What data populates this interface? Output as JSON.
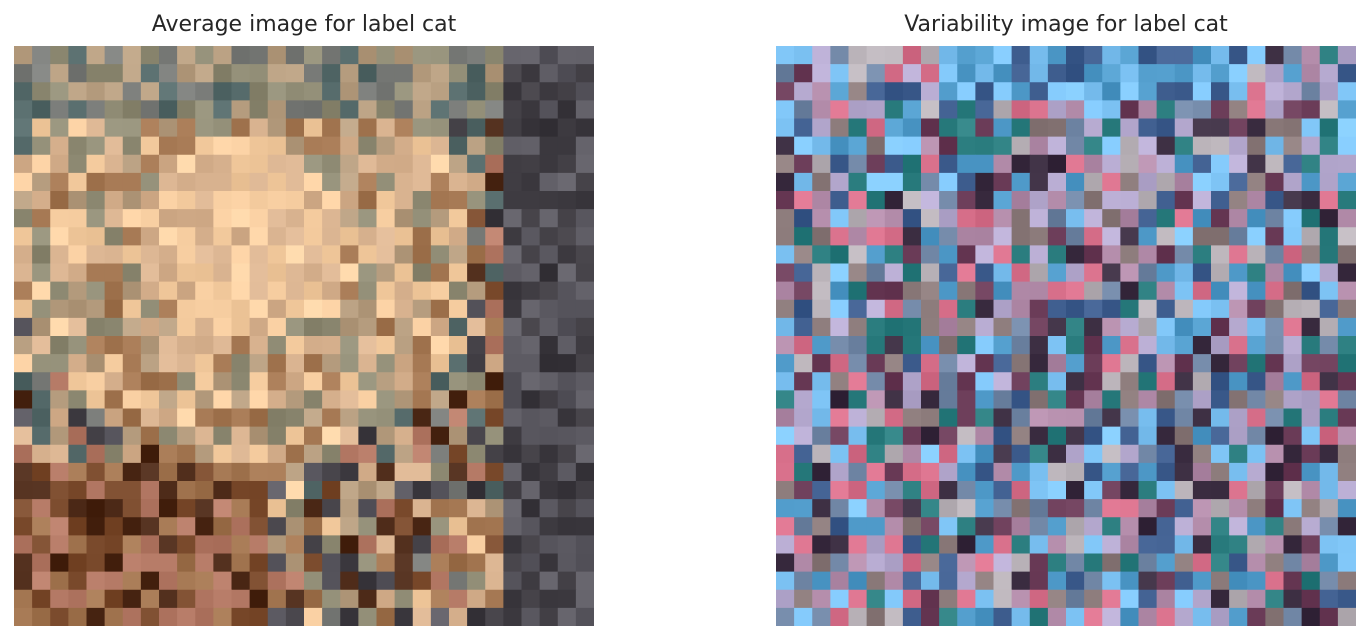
{
  "figure": {
    "left_title": "Average image for label cat",
    "right_title": "Variability image for label cat"
  },
  "left_image": {
    "content": "pixelated average cat image",
    "palette": [
      "#556a6a",
      "#7b7d7a",
      "#8f8b74",
      "#b69d7f",
      "#d7b18e",
      "#f6cda0",
      "#a27550",
      "#7a4a2c",
      "#4d2a18",
      "#b57a66",
      "#5c5a62",
      "#3f3c42"
    ]
  },
  "right_image": {
    "content": "pixelated variability cat image",
    "palette": [
      "#b6aad0",
      "#6f85a4",
      "#3e5d8e",
      "#4f9ac9",
      "#7ec4f5",
      "#b18aa8",
      "#d76f8a",
      "#6a3b57",
      "#8c7b7b",
      "#b9b2b8",
      "#3b2d41",
      "#2b7d7f"
    ]
  }
}
